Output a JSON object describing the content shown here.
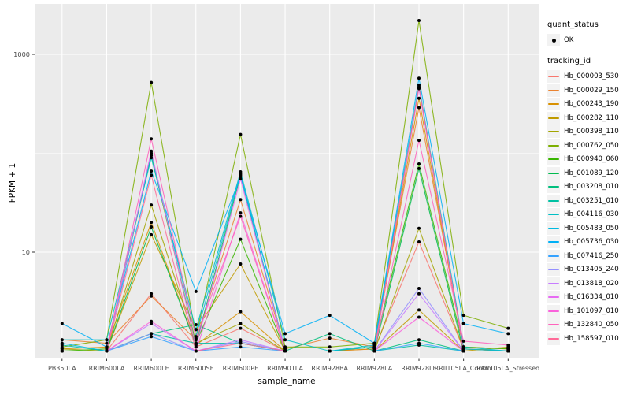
{
  "figure": {
    "panel_bg": "#EBEBEB",
    "grid_color": "#FFFFFF",
    "axis_text_color": "#4D4D4D",
    "point_color": "#000000"
  },
  "chart_data": {
    "type": "line",
    "xlabel": "sample_name",
    "ylabel": "FPKM + 1",
    "y_scale": "log10",
    "legend_position": "right",
    "grid": true,
    "y_axis_ticks": [
      {
        "label": "1000",
        "value": 1000
      },
      {
        "label": "10",
        "value": 10
      }
    ],
    "y_minor_gridlines": [
      1,
      100,
      10000
    ],
    "categories": [
      "PB350LA",
      "RRIM600LA",
      "RRIM600LE",
      "RRIM600SE",
      "RRIM600PE",
      "RRIM901LA",
      "RRIM928BA",
      "RRIM928LA",
      "RRIM928LE",
      "RRII105LA_Control",
      "RRII105LA_Stressed"
    ],
    "legend": {
      "quant_status_title": "quant_status",
      "quant_status_items": [
        {
          "label": "OK",
          "glyph": "point"
        }
      ],
      "tracking_id_title": "tracking_id"
    },
    "series": [
      {
        "name": "Hb_000003_530",
        "color": "#F8766D",
        "values": [
          1.0,
          1.0,
          3.8,
          1.1,
          1.7,
          1.0,
          1.0,
          1.05,
          12.7,
          1.05,
          1.0
        ]
      },
      {
        "name": "Hb_000029_150",
        "color": "#EA8331",
        "values": [
          1.3,
          1.2,
          3.6,
          1.3,
          34,
          1.05,
          1.35,
          1.1,
          290,
          1.1,
          1.05
        ]
      },
      {
        "name": "Hb_000243_190",
        "color": "#D89000",
        "values": [
          1.05,
          1.1,
          20,
          1.15,
          2.5,
          1.0,
          1.0,
          1.05,
          360,
          1.05,
          1.0
        ]
      },
      {
        "name": "Hb_000282_110",
        "color": "#C09B00",
        "values": [
          1.0,
          1.0,
          15,
          1.65,
          7.6,
          1.0,
          1.0,
          1.0,
          2.6,
          1.0,
          1.1
        ]
      },
      {
        "name": "Hb_000398_110",
        "color": "#A3A500",
        "values": [
          1.05,
          1.0,
          30,
          1.2,
          1.9,
          1.0,
          1.0,
          1.0,
          17.4,
          1.05,
          1.0
        ]
      },
      {
        "name": "Hb_000762_050",
        "color": "#7CAE00",
        "values": [
          1.1,
          1.3,
          520,
          1.4,
          155,
          1.1,
          1.1,
          1.2,
          2200,
          2.3,
          1.7
        ]
      },
      {
        "name": "Hb_000940_060",
        "color": "#39B600",
        "values": [
          1.0,
          1.05,
          95,
          1.2,
          13.5,
          1.0,
          1.0,
          1.1,
          78,
          1.1,
          1.05
        ]
      },
      {
        "name": "Hb_001089_120",
        "color": "#00BB4E",
        "values": [
          1.0,
          1.0,
          18,
          1.15,
          60,
          1.0,
          1.0,
          1.0,
          70,
          1.0,
          1.0
        ]
      },
      {
        "name": "Hb_003208_010",
        "color": "#00BF7D",
        "values": [
          1.0,
          1.0,
          1.5,
          1.85,
          1.2,
          1.0,
          1.5,
          1.0,
          1.3,
          1.0,
          1.0
        ]
      },
      {
        "name": "Hb_003251_010",
        "color": "#00C1A3",
        "values": [
          1.15,
          1.0,
          1.5,
          1.2,
          1.2,
          1.0,
          1.0,
          1.0,
          1.15,
          1.0,
          1.0
        ]
      },
      {
        "name": "Hb_004116_030",
        "color": "#00BFC4",
        "values": [
          1.3,
          1.3,
          90,
          1.65,
          65,
          1.3,
          1.0,
          1.15,
          490,
          1.1,
          1.0
        ]
      },
      {
        "name": "Hb_005483_050",
        "color": "#00BAE0",
        "values": [
          1.2,
          1.0,
          100,
          1.4,
          62,
          1.0,
          1.0,
          1.1,
          460,
          1.05,
          1.0
        ]
      },
      {
        "name": "Hb_005736_030",
        "color": "#00B0F6",
        "values": [
          1.9,
          1.1,
          66,
          4.0,
          58,
          1.5,
          2.3,
          1.2,
          575,
          1.9,
          1.5
        ]
      },
      {
        "name": "Hb_007416_250",
        "color": "#35A2FF",
        "values": [
          1.0,
          1.0,
          1.4,
          1.0,
          1.1,
          1.0,
          1.0,
          1.0,
          1.2,
          1.0,
          1.0
        ]
      },
      {
        "name": "Hb_013405_240",
        "color": "#9590FF",
        "values": [
          1.0,
          1.0,
          1.5,
          1.0,
          1.25,
          1.0,
          1.0,
          1.0,
          4.3,
          1.0,
          1.0
        ]
      },
      {
        "name": "Hb_013818_020",
        "color": "#C77CFF",
        "values": [
          1.0,
          1.0,
          1.9,
          1.0,
          1.3,
          1.0,
          1.0,
          1.0,
          3.8,
          1.0,
          1.0
        ]
      },
      {
        "name": "Hb_016334_010",
        "color": "#E76BF3",
        "values": [
          1.0,
          1.0,
          105,
          1.1,
          55,
          1.0,
          1.0,
          1.0,
          450,
          1.0,
          1.0
        ]
      },
      {
        "name": "Hb_101097_010",
        "color": "#FA62DB",
        "values": [
          1.0,
          1.0,
          2.0,
          1.0,
          25,
          1.0,
          1.0,
          1.0,
          2.2,
          1.0,
          1.0
        ]
      },
      {
        "name": "Hb_132840_050",
        "color": "#FF62BC",
        "values": [
          1.0,
          1.0,
          140,
          1.35,
          23,
          1.0,
          1.0,
          1.0,
          135,
          1.26,
          1.15
        ]
      },
      {
        "name": "Hb_158597_010",
        "color": "#FF6A98",
        "values": [
          1.0,
          1.0,
          60,
          1.0,
          1.2,
          1.0,
          1.0,
          1.0,
          470,
          1.0,
          1.0
        ]
      }
    ]
  }
}
